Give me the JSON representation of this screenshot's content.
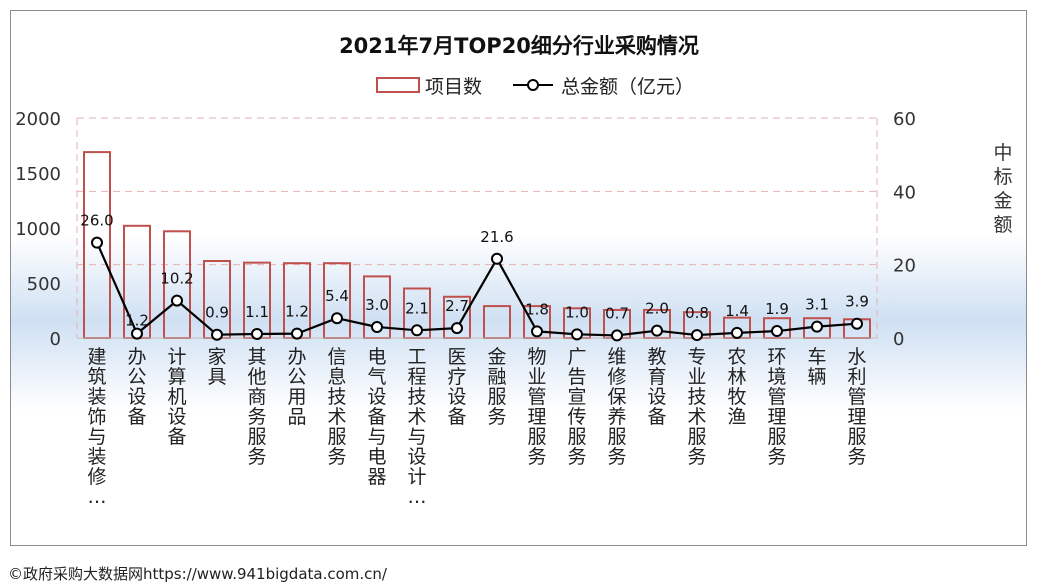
{
  "chart_data": {
    "type": "bar",
    "title": "2021年7月TOP20细分行业采购情况",
    "legend_position": "top",
    "categories": [
      "建筑装饰与装修…",
      "办公设备",
      "计算机设备",
      "家具",
      "其他商务服务",
      "办公用品",
      "信息技术服务",
      "电气设备与电器",
      "工程技术与设计…",
      "医疗设备",
      "金融服务",
      "物业管理服务",
      "广告宣传服务",
      "维修保养服务",
      "教育设备",
      "专业技术服务",
      "农林牧渔",
      "环境管理服务",
      "车辆",
      "水利管理服务"
    ],
    "series": [
      {
        "name": "项目数",
        "type": "bar",
        "axis": "left",
        "color": "#c0504d",
        "values": [
          1690,
          1020,
          970,
          700,
          685,
          680,
          680,
          560,
          450,
          375,
          290,
          290,
          270,
          255,
          255,
          235,
          185,
          180,
          180,
          170
        ]
      },
      {
        "name": "总金额（亿元）",
        "type": "line",
        "axis": "right",
        "color": "#000000",
        "values": [
          26.0,
          1.2,
          10.2,
          0.9,
          1.1,
          1.2,
          5.4,
          3.0,
          2.1,
          2.7,
          21.6,
          1.8,
          1.0,
          0.7,
          2.0,
          0.8,
          1.4,
          1.9,
          3.1,
          3.9
        ],
        "labels": [
          "26.0",
          "1.2",
          "10.2",
          "0.9",
          "1.1",
          "1.2",
          "5.4",
          "3.0",
          "2.1",
          "2.7",
          "21.6",
          "1.8",
          "1.0",
          "0.7",
          "2.0",
          "0.8",
          "1.4",
          "1.9",
          "3.1",
          "3.9"
        ]
      }
    ],
    "y_left": {
      "min": 0,
      "max": 2000,
      "ticks": [
        "0",
        "500",
        "1000",
        "1500",
        "2000"
      ]
    },
    "y_right": {
      "min": 0,
      "max": 60,
      "ticks": [
        "0",
        "20",
        "40",
        "60"
      ],
      "label": "中标金额"
    },
    "grid": true
  },
  "credit": "©政府采购大数据网https://www.941bigdata.com.cn/"
}
